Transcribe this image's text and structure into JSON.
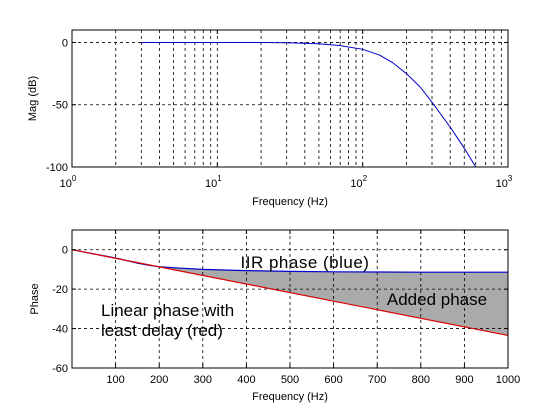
{
  "chart_data": [
    {
      "type": "line",
      "xlabel": "Frequency (Hz)",
      "ylabel": "Mag (dB)",
      "xscale": "log",
      "xlim": [
        1,
        1000
      ],
      "ylim": [
        -100,
        10
      ],
      "grid": true,
      "xticks": [
        {
          "value": 1,
          "base": "10",
          "exp": "0"
        },
        {
          "value": 10,
          "base": "10",
          "exp": "1"
        },
        {
          "value": 100,
          "base": "10",
          "exp": "2"
        },
        {
          "value": 1000,
          "base": "10",
          "exp": "3"
        }
      ],
      "yticks": [
        {
          "value": 0,
          "label": "0"
        },
        {
          "value": -50,
          "label": "-50"
        },
        {
          "value": -100,
          "label": "-100"
        }
      ],
      "series": [
        {
          "color": "#0000cc",
          "x": [
            3,
            10,
            20,
            30,
            50,
            70,
            100,
            130,
            160,
            200,
            250,
            300,
            400,
            500,
            600
          ],
          "y": [
            0,
            0,
            0,
            -0.2,
            -1,
            -2.5,
            -5.5,
            -10,
            -16,
            -25,
            -36,
            -48,
            -68,
            -85,
            -101
          ]
        }
      ]
    },
    {
      "type": "area",
      "xlabel": "Frequency (Hz)",
      "ylabel": "Phase",
      "xlim": [
        0,
        1000
      ],
      "ylim": [
        -60,
        10
      ],
      "grid": true,
      "xticks": [
        {
          "value": 100,
          "label": "100"
        },
        {
          "value": 200,
          "label": "200"
        },
        {
          "value": 300,
          "label": "300"
        },
        {
          "value": 400,
          "label": "400"
        },
        {
          "value": 500,
          "label": "500"
        },
        {
          "value": 600,
          "label": "600"
        },
        {
          "value": 700,
          "label": "700"
        },
        {
          "value": 800,
          "label": "800"
        },
        {
          "value": 900,
          "label": "900"
        },
        {
          "value": 1000,
          "label": "1000"
        }
      ],
      "yticks": [
        {
          "value": 0,
          "label": "0"
        },
        {
          "value": -20,
          "label": "-20"
        },
        {
          "value": -40,
          "label": "-40"
        },
        {
          "value": -60,
          "label": "-60"
        }
      ],
      "series": [
        {
          "name": "IIR phase (blue)",
          "color": "#0000cc",
          "x": [
            0,
            100,
            150,
            180,
            200,
            250,
            300,
            400,
            500,
            600,
            700,
            800,
            900,
            1000
          ],
          "y": [
            0,
            -4.2,
            -6.8,
            -8.0,
            -8.6,
            -9.4,
            -10.0,
            -10.6,
            -11.0,
            -11.2,
            -11.3,
            -11.4,
            -11.4,
            -11.4
          ]
        },
        {
          "name": "Linear phase with least delay (red)",
          "color": "#dd0000",
          "x": [
            0,
            1000
          ],
          "y": [
            0,
            -43.5
          ]
        }
      ],
      "fill": {
        "color": "#aaaaaa",
        "between": [
          "IIR phase (blue)",
          "Linear phase with least delay (red)"
        ]
      },
      "annotations": [
        {
          "id": "iir",
          "text": "IIR phase (blue)"
        },
        {
          "id": "added",
          "text": "Added phase"
        },
        {
          "id": "linear1",
          "text": "Linear phase with"
        },
        {
          "id": "linear2",
          "text": "least delay (red)"
        }
      ]
    }
  ]
}
